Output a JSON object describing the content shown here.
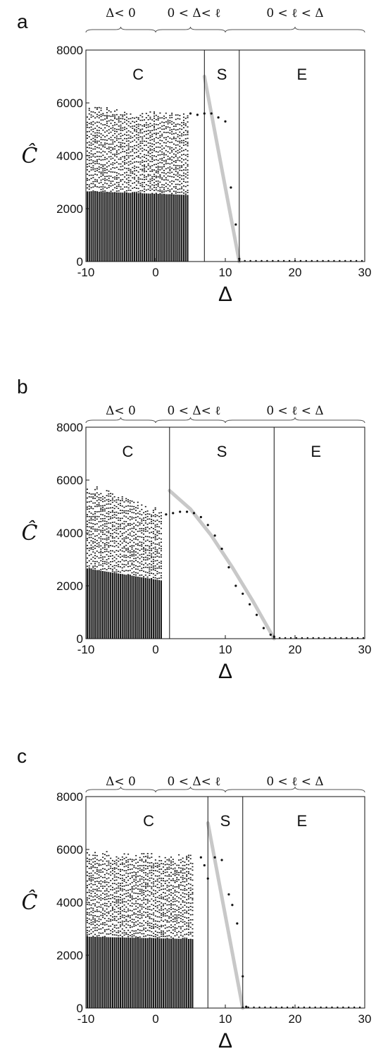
{
  "chart_data": [
    {
      "panel_label": "a",
      "type": "scatter",
      "xlabel": "Δ",
      "ylabel": "Ĉ",
      "xlim": [
        -10,
        30
      ],
      "ylim": [
        0,
        8000
      ],
      "xticks": [
        "-10",
        "0",
        "10",
        "20",
        "30"
      ],
      "yticks": [
        "0",
        "2000",
        "4000",
        "6000",
        "8000"
      ],
      "grid": false,
      "region_boundaries": [
        7,
        12
      ],
      "regions": [
        {
          "label": "C",
          "x": -2.5
        },
        {
          "label": "S",
          "x": 9.5
        },
        {
          "label": "E",
          "x": 21
        }
      ],
      "top_annotations": [
        "Δ< 0",
        "0 < Δ< ℓ",
        "0 < ℓ < Δ"
      ],
      "cloud": {
        "x_start": -9.8,
        "x_end": 4.6,
        "top_left": 5900,
        "top_right": 5600
      },
      "scatter_points": [
        [
          5,
          5600
        ],
        [
          6,
          5550
        ],
        [
          7,
          5600
        ],
        [
          8,
          5600
        ],
        [
          9,
          5450
        ],
        [
          10,
          5300
        ],
        [
          10.8,
          2800
        ],
        [
          11.5,
          1400
        ],
        [
          12,
          100
        ]
      ],
      "fit_line": [
        [
          7,
          7000
        ],
        [
          12,
          0
        ]
      ]
    },
    {
      "panel_label": "b",
      "type": "scatter",
      "xlabel": "Δ",
      "ylabel": "Ĉ",
      "xlim": [
        -10,
        30
      ],
      "ylim": [
        0,
        8000
      ],
      "xticks": [
        "-10",
        "0",
        "10",
        "20",
        "30"
      ],
      "yticks": [
        "0",
        "2000",
        "4000",
        "6000",
        "8000"
      ],
      "grid": false,
      "region_boundaries": [
        2,
        17
      ],
      "regions": [
        {
          "label": "C",
          "x": -4
        },
        {
          "label": "S",
          "x": 9.5
        },
        {
          "label": "E",
          "x": 23
        }
      ],
      "top_annotations": [
        "Δ< 0",
        "0 < Δ< ℓ",
        "0 < ℓ < Δ"
      ],
      "cloud": {
        "x_start": -9.8,
        "x_end": 0.8,
        "top_left": 5900,
        "top_right": 4900
      },
      "scatter_points": [
        [
          1.5,
          4700
        ],
        [
          2.5,
          4750
        ],
        [
          3.5,
          4800
        ],
        [
          4.5,
          4800
        ],
        [
          5.5,
          4750
        ],
        [
          6.5,
          4600
        ],
        [
          7.5,
          4300
        ],
        [
          8.5,
          3900
        ],
        [
          9.5,
          3400
        ],
        [
          10.5,
          2700
        ],
        [
          11.5,
          2000
        ],
        [
          12.5,
          1700
        ],
        [
          13.5,
          1300
        ],
        [
          14.5,
          900
        ],
        [
          15.5,
          400
        ],
        [
          16.5,
          150
        ],
        [
          17,
          80
        ]
      ],
      "fit_line": [
        [
          2,
          5600
        ],
        [
          5,
          4900
        ],
        [
          8,
          3900
        ],
        [
          11,
          2700
        ],
        [
          14,
          1400
        ],
        [
          17,
          0
        ]
      ]
    },
    {
      "panel_label": "c",
      "type": "scatter",
      "xlabel": "Δ",
      "ylabel": "Ĉ",
      "xlim": [
        -10,
        30
      ],
      "ylim": [
        0,
        8000
      ],
      "xticks": [
        "-10",
        "0",
        "10",
        "20",
        "30"
      ],
      "yticks": [
        "0",
        "2000",
        "4000",
        "6000",
        "8000"
      ],
      "grid": false,
      "region_boundaries": [
        7.5,
        12.5
      ],
      "regions": [
        {
          "label": "C",
          "x": -1
        },
        {
          "label": "S",
          "x": 10
        },
        {
          "label": "E",
          "x": 21
        }
      ],
      "top_annotations": [
        "Δ< 0",
        "0 < Δ< ℓ",
        "0 < ℓ < Δ"
      ],
      "cloud": {
        "x_start": -9.8,
        "x_end": 5.3,
        "top_left": 6000,
        "top_right": 5800
      },
      "scatter_points": [
        [
          6.5,
          5700
        ],
        [
          7,
          5400
        ],
        [
          7.5,
          4900
        ],
        [
          8.5,
          5700
        ],
        [
          9.5,
          5600
        ],
        [
          10.5,
          4300
        ],
        [
          11,
          3900
        ],
        [
          11.7,
          3200
        ],
        [
          12.5,
          1200
        ],
        [
          13,
          50
        ]
      ],
      "fit_line": [
        [
          7.5,
          7000
        ],
        [
          12.5,
          0
        ]
      ]
    }
  ]
}
